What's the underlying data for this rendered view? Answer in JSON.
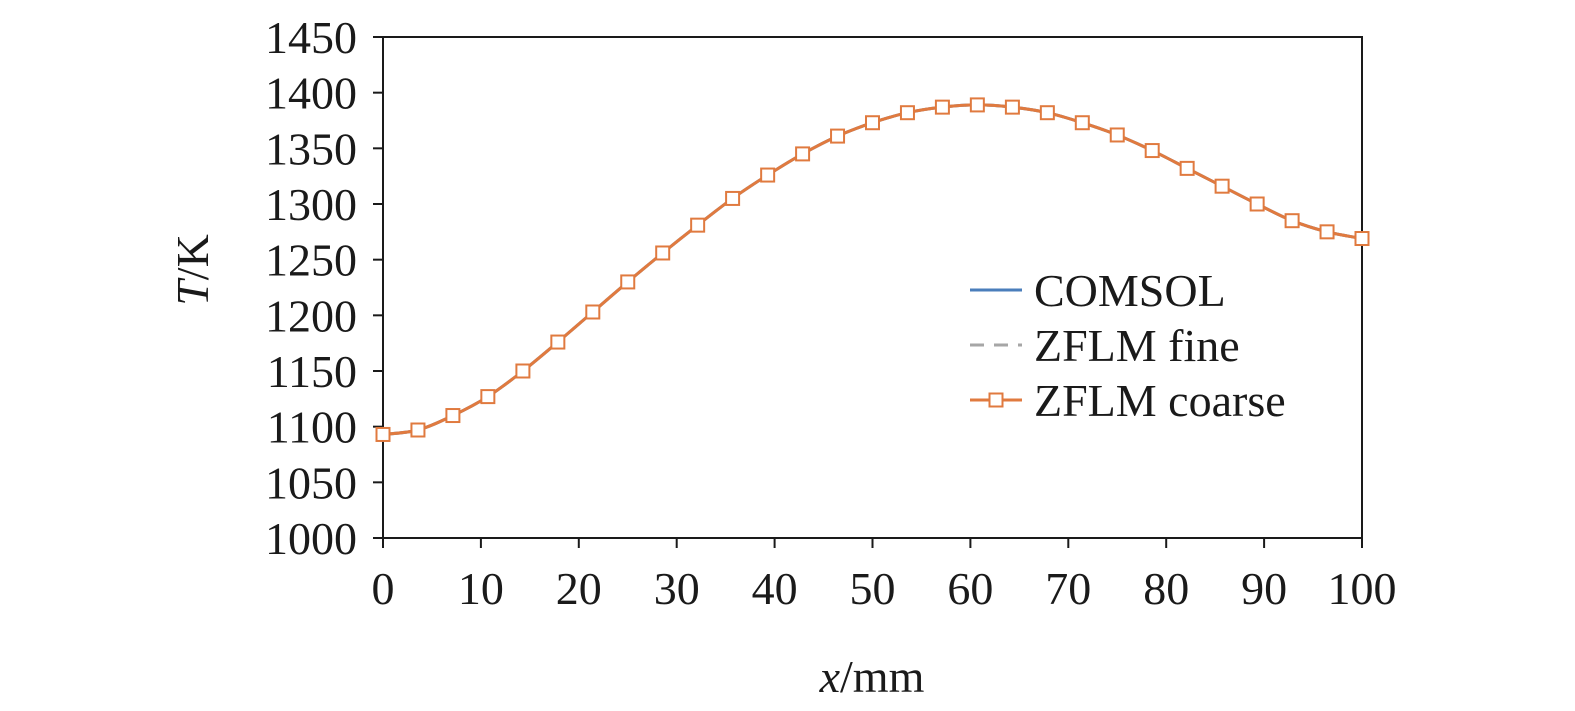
{
  "chart_data": {
    "type": "line",
    "xlabel": {
      "var": "x",
      "unit": "/mm"
    },
    "ylabel": {
      "var": "T",
      "unit": "/K"
    },
    "xlim": [
      0,
      100
    ],
    "ylim": [
      1000,
      1450
    ],
    "x_ticks": [
      0,
      10,
      20,
      30,
      40,
      50,
      60,
      70,
      80,
      90,
      100
    ],
    "y_ticks": [
      1000,
      1050,
      1100,
      1150,
      1200,
      1250,
      1300,
      1350,
      1400,
      1450
    ],
    "x_tick_labels": [
      "0",
      "10",
      "20",
      "30",
      "40",
      "50",
      "60",
      "70",
      "80",
      "90",
      "100"
    ],
    "y_tick_labels": [
      "1000",
      "1050",
      "1100",
      "1150",
      "1200",
      "1250",
      "1300",
      "1350",
      "1400",
      "1450"
    ],
    "grid": false,
    "legend_position": "right",
    "series": [
      {
        "name": "COMSOL",
        "color": "#4a7ebb",
        "style": "solid",
        "marker": "none",
        "x": [
          0,
          3.57,
          7.14,
          10.71,
          14.29,
          17.86,
          21.43,
          25,
          28.57,
          32.14,
          35.71,
          39.29,
          42.86,
          46.43,
          50,
          53.57,
          57.14,
          60.71,
          64.29,
          67.86,
          71.43,
          75,
          78.57,
          82.14,
          85.71,
          89.29,
          92.86,
          96.43,
          100
        ],
        "y": [
          1093,
          1097,
          1110,
          1127,
          1150,
          1176,
          1203,
          1230,
          1256,
          1281,
          1305,
          1326,
          1345,
          1361,
          1373,
          1382,
          1387,
          1389,
          1387,
          1382,
          1373,
          1362,
          1348,
          1332,
          1316,
          1300,
          1285,
          1275,
          1269
        ]
      },
      {
        "name": "ZFLM fine",
        "color": "#a6a6a6",
        "style": "dashed",
        "marker": "none",
        "x": [
          0,
          3.57,
          7.14,
          10.71,
          14.29,
          17.86,
          21.43,
          25,
          28.57,
          32.14,
          35.71,
          39.29,
          42.86,
          46.43,
          50,
          53.57,
          57.14,
          60.71,
          64.29,
          67.86,
          71.43,
          75,
          78.57,
          82.14,
          85.71,
          89.29,
          92.86,
          96.43,
          100
        ],
        "y": [
          1093,
          1097,
          1110,
          1127,
          1150,
          1176,
          1203,
          1230,
          1256,
          1281,
          1305,
          1326,
          1345,
          1361,
          1373,
          1382,
          1387,
          1389,
          1387,
          1382,
          1373,
          1362,
          1348,
          1332,
          1316,
          1300,
          1285,
          1275,
          1269
        ]
      },
      {
        "name": "ZFLM coarse",
        "color": "#e07a3f",
        "style": "solid",
        "marker": "square",
        "x": [
          0,
          3.57,
          7.14,
          10.71,
          14.29,
          17.86,
          21.43,
          25,
          28.57,
          32.14,
          35.71,
          39.29,
          42.86,
          46.43,
          50,
          53.57,
          57.14,
          60.71,
          64.29,
          67.86,
          71.43,
          75,
          78.57,
          82.14,
          85.71,
          89.29,
          92.86,
          96.43,
          100
        ],
        "y": [
          1093,
          1097,
          1110,
          1127,
          1150,
          1176,
          1203,
          1230,
          1256,
          1281,
          1305,
          1326,
          1345,
          1361,
          1373,
          1382,
          1387,
          1389,
          1387,
          1382,
          1373,
          1362,
          1348,
          1332,
          1316,
          1300,
          1285,
          1275,
          1269
        ]
      }
    ]
  }
}
